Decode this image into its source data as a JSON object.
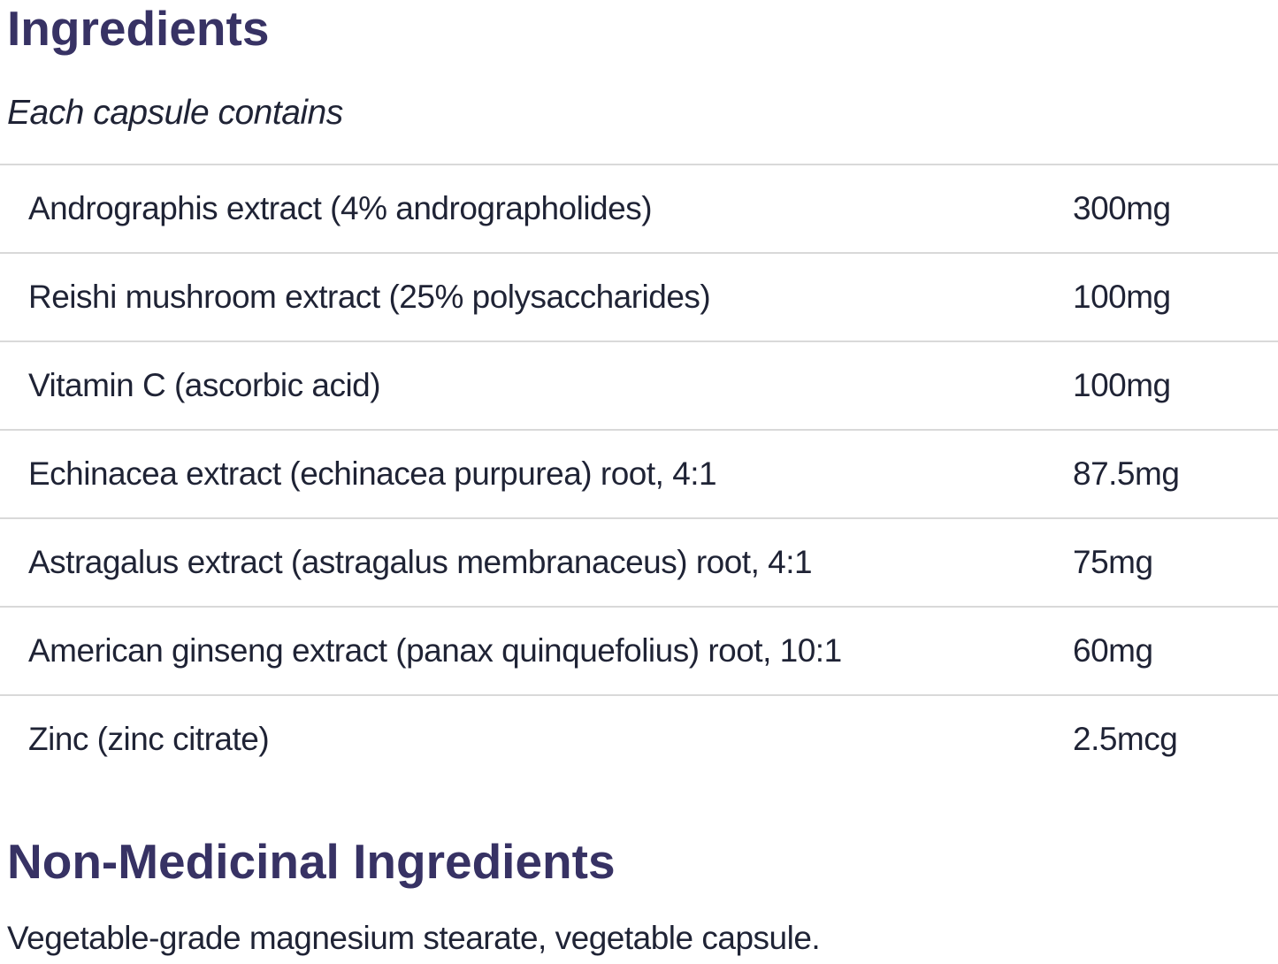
{
  "ingredients_section": {
    "title": "Ingredients",
    "subtitle": "Each capsule contains",
    "table": {
      "rows": [
        {
          "name": "Andrographis extract (4% andrographolides)",
          "amount": "300mg"
        },
        {
          "name": "Reishi mushroom extract (25% polysaccharides)",
          "amount": "100mg"
        },
        {
          "name": "Vitamin C (ascorbic acid)",
          "amount": "100mg"
        },
        {
          "name": "Echinacea extract (echinacea purpurea) root, 4:1",
          "amount": "87.5mg"
        },
        {
          "name": "Astragalus extract (astragalus membranaceus) root, 4:1",
          "amount": "75mg"
        },
        {
          "name": "American ginseng extract (panax quinquefolius) root, 10:1",
          "amount": "60mg"
        },
        {
          "name": "Zinc (zinc citrate)",
          "amount": "2.5mcg"
        }
      ]
    }
  },
  "non_medicinal_section": {
    "title": "Non-Medicinal Ingredients",
    "text": "Vegetable-grade magnesium stearate, vegetable capsule."
  },
  "colors": {
    "heading": "#373264",
    "body": "#1f2335",
    "divider": "#d9d9d9",
    "background": "#ffffff"
  }
}
